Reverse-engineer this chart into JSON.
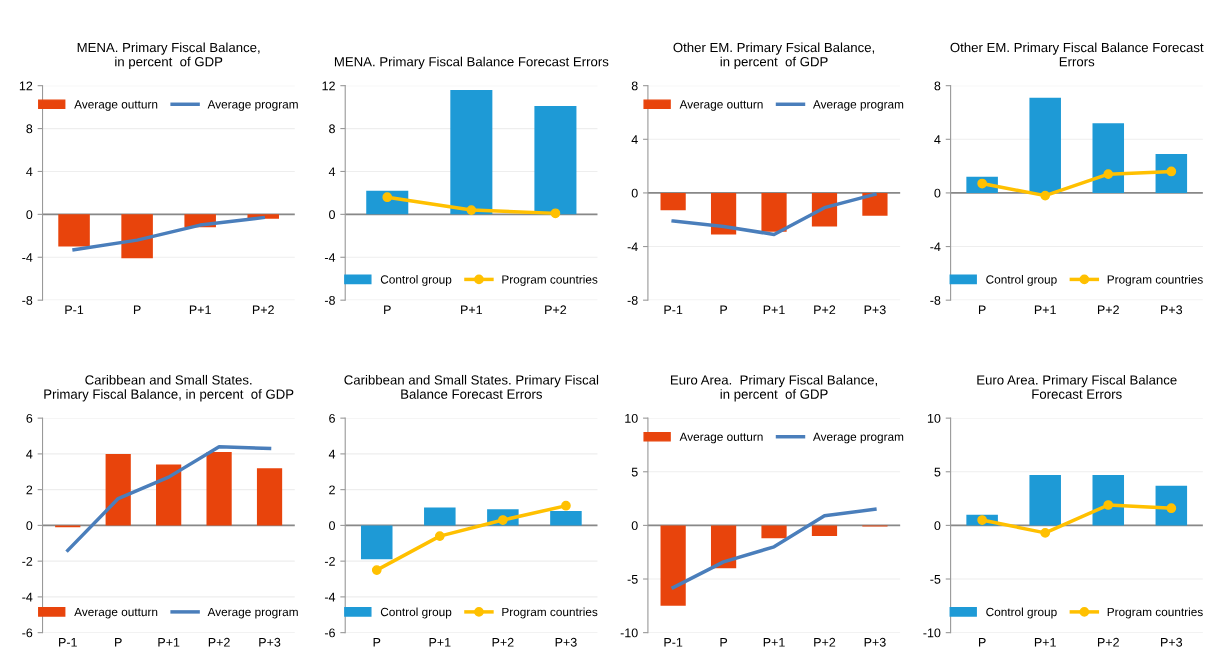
{
  "chart_data": [
    {
      "type": "bar",
      "title": "MENA. Primary Fiscal Balance,\nin percent  of GDP",
      "categories": [
        "P-1",
        "P",
        "P+1",
        "P+2"
      ],
      "ylim": [
        -8,
        12
      ],
      "yticks": [
        -8,
        -4,
        0,
        4,
        8,
        12
      ],
      "grid": "y",
      "legend": "top",
      "ref_lines": [
        {
          "axis": "y",
          "value": 0
        }
      ],
      "series": [
        {
          "name": "Average outturn",
          "color": "#e8440c",
          "values": [
            -3.0,
            -4.1,
            -1.2,
            -0.4
          ]
        },
        {
          "name": "Average program",
          "type": "line",
          "color": "#4a7ebb",
          "marker": "none",
          "values": [
            -3.3,
            -2.4,
            -1.0,
            -0.3
          ]
        }
      ]
    },
    {
      "type": "bar",
      "title": "MENA. Primary Fiscal Balance Forecast Errors",
      "categories": [
        "P",
        "P+1",
        "P+2"
      ],
      "ylim": [
        -8,
        12
      ],
      "yticks": [
        -8,
        -4,
        0,
        4,
        8,
        12
      ],
      "grid": "y",
      "legend": "bottom",
      "ref_lines": [
        {
          "axis": "y",
          "value": 0
        }
      ],
      "series": [
        {
          "name": "Control group",
          "color": "#1e9ad6",
          "values": [
            2.2,
            11.6,
            10.1
          ]
        },
        {
          "name": "Program countries",
          "type": "line",
          "color": "#ffc000",
          "marker": "circle",
          "values": [
            1.6,
            0.4,
            0.1
          ]
        }
      ]
    },
    {
      "type": "bar",
      "title": "Other EM. Primary Fsical Balance,\nin percent  of GDP",
      "categories": [
        "P-1",
        "P",
        "P+1",
        "P+2",
        "P+3"
      ],
      "ylim": [
        -8,
        8
      ],
      "yticks": [
        -8,
        -4,
        0,
        4,
        8
      ],
      "grid": "y",
      "legend": "top",
      "ref_lines": [
        {
          "axis": "y",
          "value": 0
        }
      ],
      "series": [
        {
          "name": "Average outturn",
          "color": "#e8440c",
          "values": [
            -1.3,
            -3.1,
            -2.9,
            -2.5,
            -1.7
          ]
        },
        {
          "name": "Average program",
          "type": "line",
          "color": "#4a7ebb",
          "marker": "none",
          "values": [
            -2.1,
            -2.5,
            -3.1,
            -1.1,
            -0.1
          ]
        }
      ]
    },
    {
      "type": "bar",
      "title": "Other EM. Primary Fiscal Balance Forecast\nErrors",
      "categories": [
        "P",
        "P+1",
        "P+2",
        "P+3"
      ],
      "ylim": [
        -8,
        8
      ],
      "yticks": [
        -8,
        -4,
        0,
        4,
        8
      ],
      "grid": "y",
      "legend": "bottom",
      "ref_lines": [
        {
          "axis": "y",
          "value": 0
        }
      ],
      "series": [
        {
          "name": "Control group",
          "color": "#1e9ad6",
          "values": [
            1.2,
            7.1,
            5.2,
            2.9
          ]
        },
        {
          "name": "Program countries",
          "type": "line",
          "color": "#ffc000",
          "marker": "circle",
          "values": [
            0.7,
            -0.2,
            1.4,
            1.6
          ]
        }
      ]
    },
    {
      "type": "bar",
      "title": "Caribbean and Small States.\nPrimary Fiscal Balance, in percent  of GDP",
      "categories": [
        "P-1",
        "P",
        "P+1",
        "P+2",
        "P+3"
      ],
      "ylim": [
        -6,
        6
      ],
      "yticks": [
        -6,
        -4,
        -2,
        0,
        2,
        4,
        6
      ],
      "grid": "y",
      "legend": "bottom",
      "ref_lines": [
        {
          "axis": "y",
          "value": 0
        }
      ],
      "series": [
        {
          "name": "Average outturn",
          "color": "#e8440c",
          "values": [
            -0.1,
            4.0,
            3.4,
            4.1,
            3.2
          ]
        },
        {
          "name": "Average program",
          "type": "line",
          "color": "#4a7ebb",
          "marker": "none",
          "values": [
            -1.4,
            1.5,
            2.7,
            4.4,
            4.3
          ]
        }
      ]
    },
    {
      "type": "bar",
      "title": "Caribbean and Small States. Primary Fiscal\nBalance Forecast Errors",
      "categories": [
        "P",
        "P+1",
        "P+2",
        "P+3"
      ],
      "ylim": [
        -6,
        6
      ],
      "yticks": [
        -6,
        -4,
        -2,
        0,
        2,
        4,
        6
      ],
      "grid": "y",
      "legend": "bottom",
      "ref_lines": [
        {
          "axis": "y",
          "value": 0
        }
      ],
      "series": [
        {
          "name": "Control group",
          "color": "#1e9ad6",
          "values": [
            -1.9,
            1.0,
            0.9,
            0.8
          ]
        },
        {
          "name": "Program countries",
          "type": "line",
          "color": "#ffc000",
          "marker": "circle",
          "values": [
            -2.5,
            -0.6,
            0.3,
            1.1
          ]
        }
      ]
    },
    {
      "type": "bar",
      "title": "Euro Area.  Primary Fiscal Balance,\nin percent  of GDP",
      "categories": [
        "P-1",
        "P",
        "P+1",
        "P+2",
        "P+3"
      ],
      "ylim": [
        -10,
        10
      ],
      "yticks": [
        -10,
        -5,
        0,
        5,
        10
      ],
      "grid": "y",
      "legend": "top",
      "ref_lines": [
        {
          "axis": "y",
          "value": 0
        }
      ],
      "series": [
        {
          "name": "Average outturn",
          "color": "#e8440c",
          "values": [
            -7.5,
            -4.0,
            -1.2,
            -1.0,
            -0.1
          ]
        },
        {
          "name": "Average program",
          "type": "line",
          "color": "#4a7ebb",
          "marker": "none",
          "values": [
            -5.8,
            -3.4,
            -2.0,
            0.9,
            1.5
          ]
        }
      ]
    },
    {
      "type": "bar",
      "title": "Euro Area. Primary Fiscal Balance\nForecast Errors",
      "categories": [
        "P",
        "P+1",
        "P+2",
        "P+3"
      ],
      "ylim": [
        -10,
        10
      ],
      "yticks": [
        -10,
        -5,
        0,
        5,
        10
      ],
      "grid": "y",
      "legend": "bottom",
      "ref_lines": [
        {
          "axis": "y",
          "value": 0
        }
      ],
      "series": [
        {
          "name": "Control group",
          "color": "#1e9ad6",
          "values": [
            1.0,
            4.7,
            4.7,
            3.7
          ]
        },
        {
          "name": "Program countries",
          "type": "line",
          "color": "#ffc000",
          "marker": "circle",
          "values": [
            0.5,
            -0.7,
            1.9,
            1.6
          ]
        }
      ]
    }
  ]
}
